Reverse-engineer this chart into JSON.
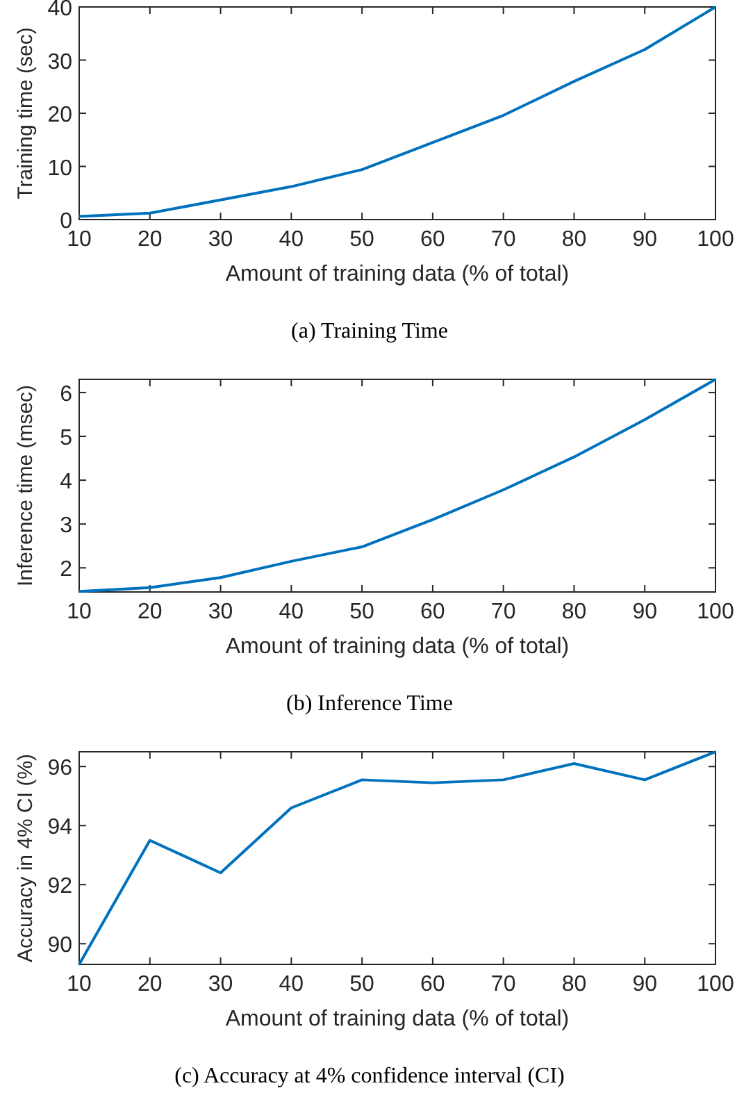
{
  "chart_data": [
    {
      "type": "line",
      "title": "(a)  Training Time",
      "xlabel": "Amount of training data (% of total)",
      "ylabel": "Training time (sec)",
      "x": [
        10,
        20,
        30,
        40,
        50,
        60,
        70,
        80,
        90,
        100
      ],
      "xlim": [
        10,
        100
      ],
      "xticks": [
        10,
        20,
        30,
        40,
        50,
        60,
        70,
        80,
        90,
        100
      ],
      "ylim": [
        0,
        40
      ],
      "yticks": [
        0,
        10,
        20,
        30,
        40
      ],
      "series": [
        {
          "color": "#0072bd",
          "values": [
            0.6,
            1.2,
            3.7,
            6.2,
            9.4,
            14.5,
            19.6,
            26,
            32,
            40
          ]
        }
      ]
    },
    {
      "type": "line",
      "title": "(b)  Inference Time",
      "xlabel": "Amount of training data (% of total)",
      "ylabel": "Inference time (msec)",
      "x": [
        10,
        20,
        30,
        40,
        50,
        60,
        70,
        80,
        90,
        100
      ],
      "xlim": [
        10,
        100
      ],
      "xticks": [
        10,
        20,
        30,
        40,
        50,
        60,
        70,
        80,
        90,
        100
      ],
      "ylim": [
        1.45,
        6.3
      ],
      "yticks": [
        2,
        3,
        4,
        5,
        6
      ],
      "series": [
        {
          "color": "#0072bd",
          "values": [
            1.46,
            1.55,
            1.78,
            2.15,
            2.48,
            3.1,
            3.78,
            4.53,
            5.38,
            6.3
          ]
        }
      ]
    },
    {
      "type": "line",
      "title": "(c)  Accuracy at 4% confidence interval (CI)",
      "xlabel": "Amount of training data (% of total)",
      "ylabel": "Accuracy in 4% CI (%)",
      "x": [
        10,
        20,
        30,
        40,
        50,
        60,
        70,
        80,
        90,
        100
      ],
      "xlim": [
        10,
        100
      ],
      "xticks": [
        10,
        20,
        30,
        40,
        50,
        60,
        70,
        80,
        90,
        100
      ],
      "ylim": [
        89.3,
        96.5
      ],
      "yticks": [
        90,
        92,
        94,
        96
      ],
      "series": [
        {
          "color": "#0072bd",
          "values": [
            89.3,
            93.5,
            92.4,
            94.6,
            95.55,
            95.45,
            95.55,
            96.1,
            95.55,
            96.5
          ]
        }
      ]
    }
  ]
}
